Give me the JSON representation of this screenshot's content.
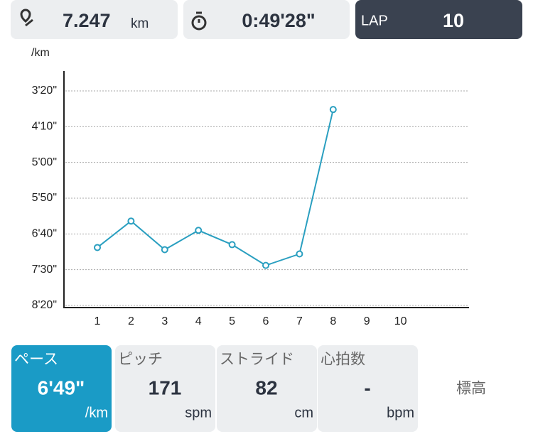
{
  "header": {
    "distance": {
      "value": "7.247",
      "unit": "km"
    },
    "time": "0:49'28\"",
    "lap": {
      "label": "LAP",
      "value": "10"
    }
  },
  "chart_data": {
    "type": "line",
    "y_unit": "/km",
    "categories": [
      1,
      2,
      3,
      4,
      5,
      6,
      7,
      8,
      9,
      10
    ],
    "series": [
      {
        "name": "ペース",
        "color": "#2a9fc0",
        "values": [
          419,
          382,
          422,
          395,
          415,
          444,
          428,
          226,
          null,
          null
        ]
      }
    ],
    "ylim": [
      500,
      170
    ],
    "yticks": [
      {
        "value": 200,
        "label": "3'20\""
      },
      {
        "value": 250,
        "label": "4'10\""
      },
      {
        "value": 300,
        "label": "5'00\""
      },
      {
        "value": 350,
        "label": "5'50\""
      },
      {
        "value": 400,
        "label": "6'40\""
      },
      {
        "value": 450,
        "label": "7'30\""
      },
      {
        "value": 500,
        "label": "8'20\""
      }
    ],
    "grid": true
  },
  "tabs": [
    {
      "label": "ペース",
      "value": "6'49\"",
      "unit": "/km"
    },
    {
      "label": "ピッチ",
      "value": "171",
      "unit": "spm"
    },
    {
      "label": "ストライド",
      "value": "82",
      "unit": "cm"
    },
    {
      "label": "心拍数",
      "value": "-",
      "unit": "bpm"
    },
    {
      "label": "標高"
    }
  ]
}
